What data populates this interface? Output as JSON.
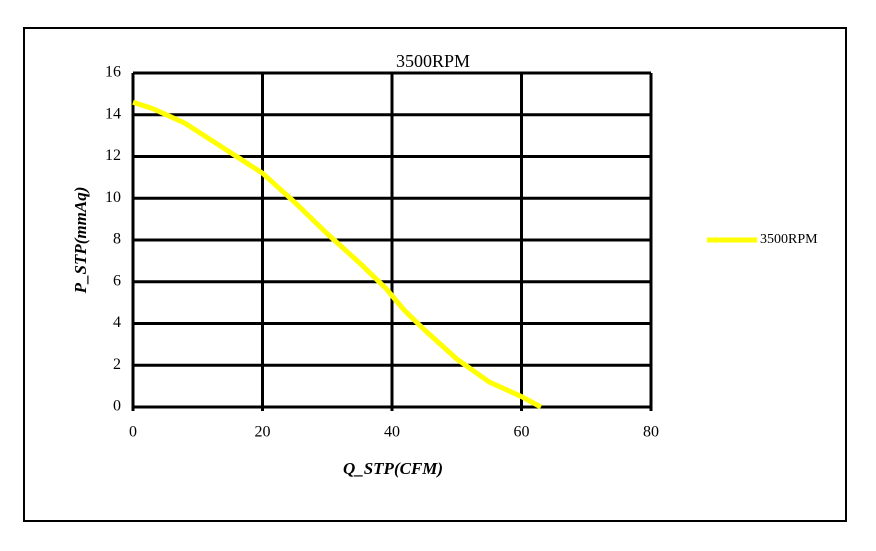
{
  "chart_data": {
    "type": "line",
    "title": "3500RPM",
    "xlabel": "Q_STP(CFM)",
    "ylabel": "P_STP(mmAq)",
    "x": [
      0,
      3,
      8,
      12,
      16,
      20,
      25,
      30,
      35,
      39,
      42,
      45,
      50,
      55,
      60,
      63
    ],
    "series": [
      {
        "name": "3500RPM",
        "color": "#ffff00",
        "values": [
          14.6,
          14.3,
          13.6,
          12.8,
          12.0,
          11.2,
          9.8,
          8.3,
          6.9,
          5.7,
          4.6,
          3.7,
          2.3,
          1.2,
          0.5,
          0
        ]
      }
    ],
    "xlim": [
      0,
      80
    ],
    "xticks": [
      0,
      20,
      40,
      60,
      80
    ],
    "ylim": [
      0,
      16
    ],
    "yticks": [
      0,
      2,
      4,
      6,
      8,
      10,
      12,
      14,
      16
    ],
    "grid": true,
    "legend": "right"
  }
}
